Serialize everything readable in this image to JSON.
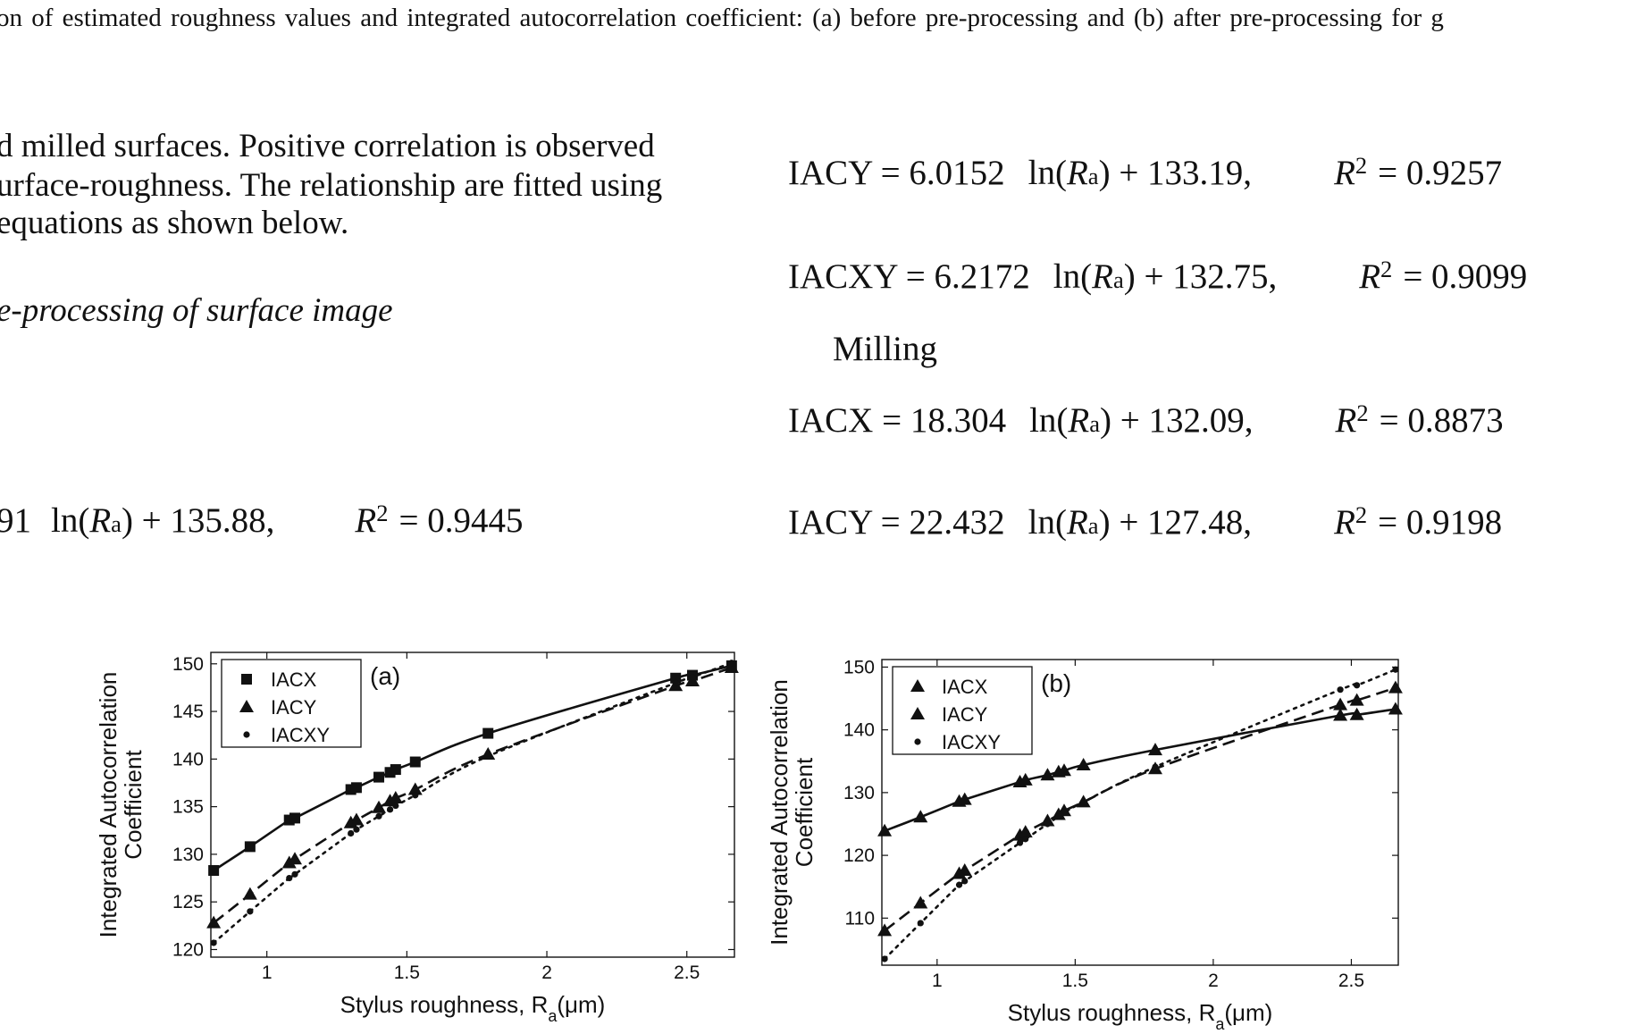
{
  "caption": "on of estimated roughness values and integrated autocorrelation coefficient: (a) before pre-processing and (b) after pre-processing for g",
  "left_column": {
    "lines": [
      "d milled surfaces. Positive correlation is observed",
      "urface-roughness. The relationship are fitted using",
      "equations as shown below."
    ],
    "subheading": "e-processing of surface image",
    "partial_equation": {
      "lhs": "91",
      "ln_text": "ln(",
      "var": "R",
      "sub": "a",
      "rhs": ") + 135.88,",
      "r2_var": "R",
      "r2_sup": "2",
      "r2_value": "= 0.9445"
    }
  },
  "right_column": {
    "equations_top": [
      {
        "lhs": "IACY = 6.0152",
        "ln_text": "ln(",
        "var": "R",
        "sub": "a",
        "rhs": ") + 133.19,",
        "r2_var": "R",
        "r2_sup": "2",
        "r2_value": "= 0.9257"
      },
      {
        "lhs": "IACXY = 6.2172",
        "ln_text": "ln(",
        "var": "R",
        "sub": "a",
        "rhs": ") + 132.75,",
        "r2_var": "R",
        "r2_sup": "2",
        "r2_value": "= 0.9099"
      }
    ],
    "milling_heading": "Milling",
    "equations_bottom": [
      {
        "lhs": "IACX = 18.304",
        "ln_text": "ln(",
        "var": "R",
        "sub": "a",
        "rhs": ") + 132.09,",
        "r2_var": "R",
        "r2_sup": "2",
        "r2_value": "= 0.8873"
      },
      {
        "lhs": "IACY = 22.432",
        "ln_text": "ln(",
        "var": "R",
        "sub": "a",
        "rhs": ") + 127.48,",
        "r2_var": "R",
        "r2_sup": "2",
        "r2_value": "= 0.9198"
      }
    ]
  },
  "chart_data": [
    {
      "type": "line",
      "panel_label": "(a)",
      "xlabel_main": "Stylus roughness, R",
      "xlabel_sub": "a",
      "xlabel_unit": "(μm)",
      "ylabel_line1": "Integrated Autocorrelation",
      "ylabel_line2": "Coefficient",
      "xlim": [
        0.8,
        2.67
      ],
      "ylim": [
        119.2,
        151.2
      ],
      "xticks": [
        1,
        1.5,
        2,
        2.5
      ],
      "xtick_labels": [
        "1",
        "1.5",
        "2",
        "2.5"
      ],
      "yticks": [
        120,
        125,
        130,
        135,
        140,
        145,
        150
      ],
      "ytick_labels": [
        "120",
        "125",
        "130",
        "135",
        "140",
        "145",
        "150"
      ],
      "x": [
        0.81,
        0.94,
        1.08,
        1.1,
        1.3,
        1.32,
        1.4,
        1.44,
        1.46,
        1.53,
        1.79,
        2.46,
        2.52,
        2.66
      ],
      "series": [
        {
          "name": "IACX",
          "marker": "square",
          "dash": "solid",
          "values": [
            128.3,
            130.8,
            133.6,
            133.8,
            136.8,
            137.0,
            138.1,
            138.6,
            138.9,
            139.7,
            142.7,
            148.5,
            148.8,
            149.8
          ]
        },
        {
          "name": "IACY",
          "marker": "triangle",
          "dash": "dashed",
          "values": [
            122.8,
            125.8,
            129.1,
            129.5,
            133.3,
            133.6,
            134.9,
            135.6,
            135.9,
            136.8,
            140.5,
            147.7,
            148.2,
            149.6
          ]
        },
        {
          "name": "IACXY",
          "marker": "dot",
          "dash": "dotted",
          "values": [
            120.7,
            124.0,
            127.5,
            127.9,
            132.2,
            132.6,
            134.0,
            134.7,
            135.1,
            136.2,
            140.3,
            148.0,
            148.6,
            150.1
          ]
        }
      ],
      "legend_position": "top-left"
    },
    {
      "type": "line",
      "panel_label": "(b)",
      "xlabel_main": "Stylus roughness, R",
      "xlabel_sub": "a",
      "xlabel_unit": "(μm)",
      "ylabel_line1": "Integrated Autocorrelation",
      "ylabel_line2": "Coefficient",
      "xlim": [
        0.8,
        2.67
      ],
      "ylim": [
        102.5,
        151.2
      ],
      "xticks": [
        1,
        1.5,
        2,
        2.5
      ],
      "xtick_labels": [
        "1",
        "1.5",
        "2",
        "2.5"
      ],
      "yticks": [
        110,
        120,
        130,
        140,
        150
      ],
      "ytick_labels": [
        "110",
        "120",
        "130",
        "140",
        "150"
      ],
      "x": [
        0.81,
        0.94,
        1.08,
        1.1,
        1.3,
        1.32,
        1.4,
        1.44,
        1.46,
        1.53,
        1.79,
        2.46,
        2.52,
        2.66
      ],
      "series": [
        {
          "name": "IACX",
          "marker": "triangle",
          "dash": "solid",
          "values": [
            123.9,
            126.1,
            128.6,
            128.9,
            131.7,
            132.0,
            132.8,
            133.3,
            133.5,
            134.4,
            136.8,
            142.3,
            142.4,
            143.3
          ]
        },
        {
          "name": "IACY",
          "marker": "triangle",
          "dash": "dashed",
          "values": [
            108.0,
            112.4,
            117.1,
            117.6,
            123.2,
            123.7,
            125.5,
            126.5,
            127.1,
            128.5,
            133.8,
            144.0,
            144.7,
            146.7
          ]
        },
        {
          "name": "IACXY",
          "marker": "dot",
          "dash": "dotted",
          "values": [
            103.5,
            109.2,
            115.3,
            115.9,
            122.0,
            122.6,
            125.0,
            126.2,
            126.8,
            128.5,
            134.1,
            146.4,
            147.1,
            149.6
          ]
        }
      ],
      "legend_position": "top-left"
    }
  ]
}
